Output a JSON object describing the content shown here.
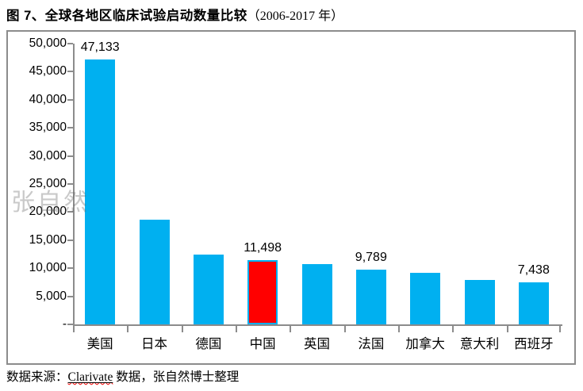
{
  "figure": {
    "title_main": "图 7、全球各地区临床试验启动数量比较",
    "title_suffix": "（2006-2017 年）",
    "watermark": "张自然",
    "source_prefix": "数据来源：",
    "source_link": "Clarivate",
    "source_suffix": " 数据，张自然博士整理"
  },
  "chart_data": {
    "type": "bar",
    "title": "全球各地区临床试验启动数量比较（2006-2017 年）",
    "categories": [
      "美国",
      "日本",
      "德国",
      "中国",
      "英国",
      "法国",
      "加拿大",
      "意大利",
      "西班牙"
    ],
    "values": [
      47133,
      18600,
      12400,
      11498,
      10800,
      9789,
      9150,
      7900,
      7438
    ],
    "value_is_estimate": [
      false,
      true,
      true,
      false,
      true,
      false,
      true,
      true,
      false
    ],
    "bar_labels": [
      "47,133",
      null,
      null,
      "11,498",
      null,
      "9,789",
      null,
      null,
      "7,438"
    ],
    "bar_color": "#00B0F0",
    "highlight": {
      "index": 3,
      "fill": "#FF0000",
      "border": "#00B0F0"
    },
    "y_axis": {
      "min": 0,
      "max": 50000,
      "step": 5000,
      "tick_labels": [
        "-",
        "5,000",
        "10,000",
        "15,000",
        "20,000",
        "25,000",
        "30,000",
        "35,000",
        "40,000",
        "45,000",
        "50,000"
      ]
    },
    "axis_color": "#8C8C8C",
    "grid": false,
    "legend": false
  }
}
